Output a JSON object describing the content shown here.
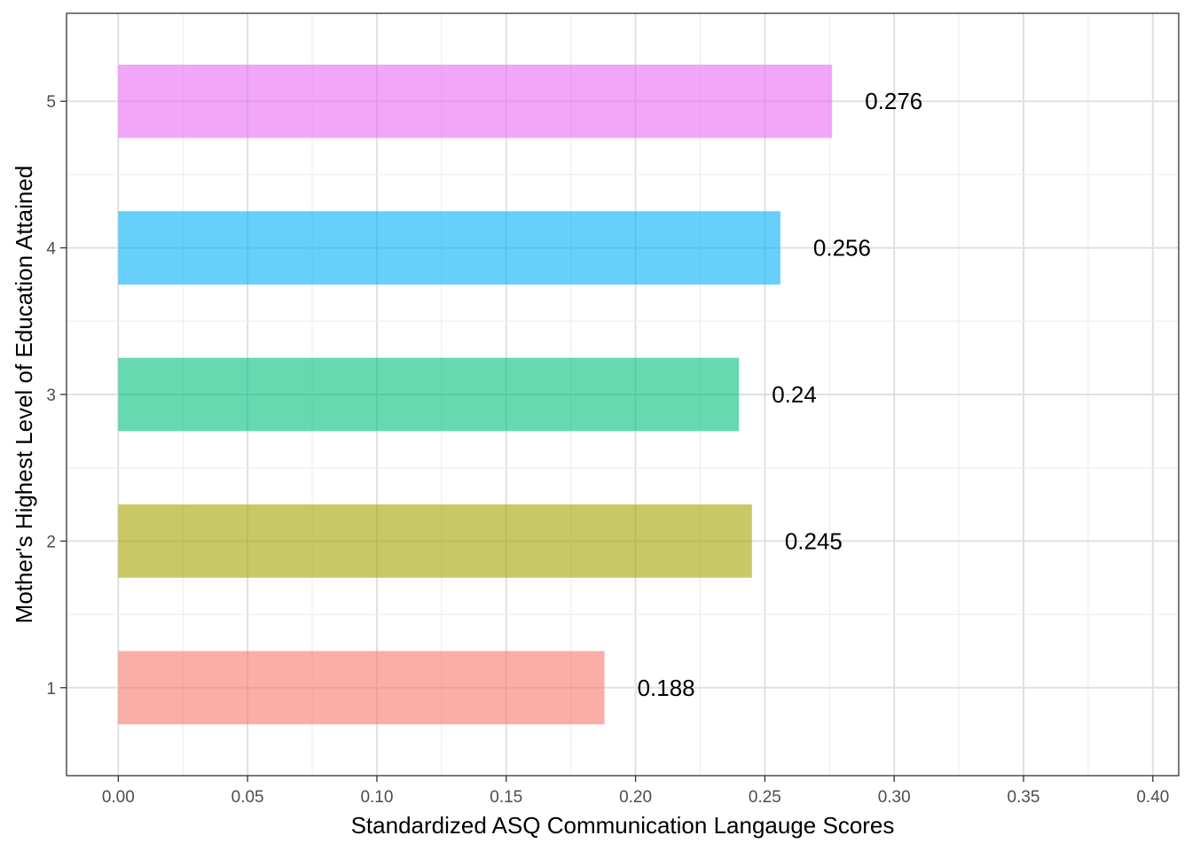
{
  "chart_data": {
    "type": "bar",
    "orientation": "horizontal",
    "categories": [
      "1",
      "2",
      "3",
      "4",
      "5"
    ],
    "values": [
      0.188,
      0.245,
      0.24,
      0.256,
      0.276
    ],
    "value_labels": [
      "0.188",
      "0.245",
      "0.24",
      "0.256",
      "0.276"
    ],
    "colors": [
      "#F8766D",
      "#A3A500",
      "#00BF7D",
      "#00B0F6",
      "#E76BF3"
    ],
    "bar_opacity": 0.6,
    "title": "",
    "xlabel": "Standardized ASQ Communication Langauge Scores",
    "ylabel": "Mother's Highest Level of Education Attained",
    "xlim": [
      -0.02,
      0.41
    ],
    "xticks": [
      0.0,
      0.05,
      0.1,
      0.15,
      0.2,
      0.25,
      0.3,
      0.35,
      0.4
    ],
    "xtick_labels": [
      "0.00",
      "0.05",
      "0.10",
      "0.15",
      "0.20",
      "0.25",
      "0.30",
      "0.35",
      "0.40"
    ],
    "grid": true,
    "legend": "none"
  }
}
